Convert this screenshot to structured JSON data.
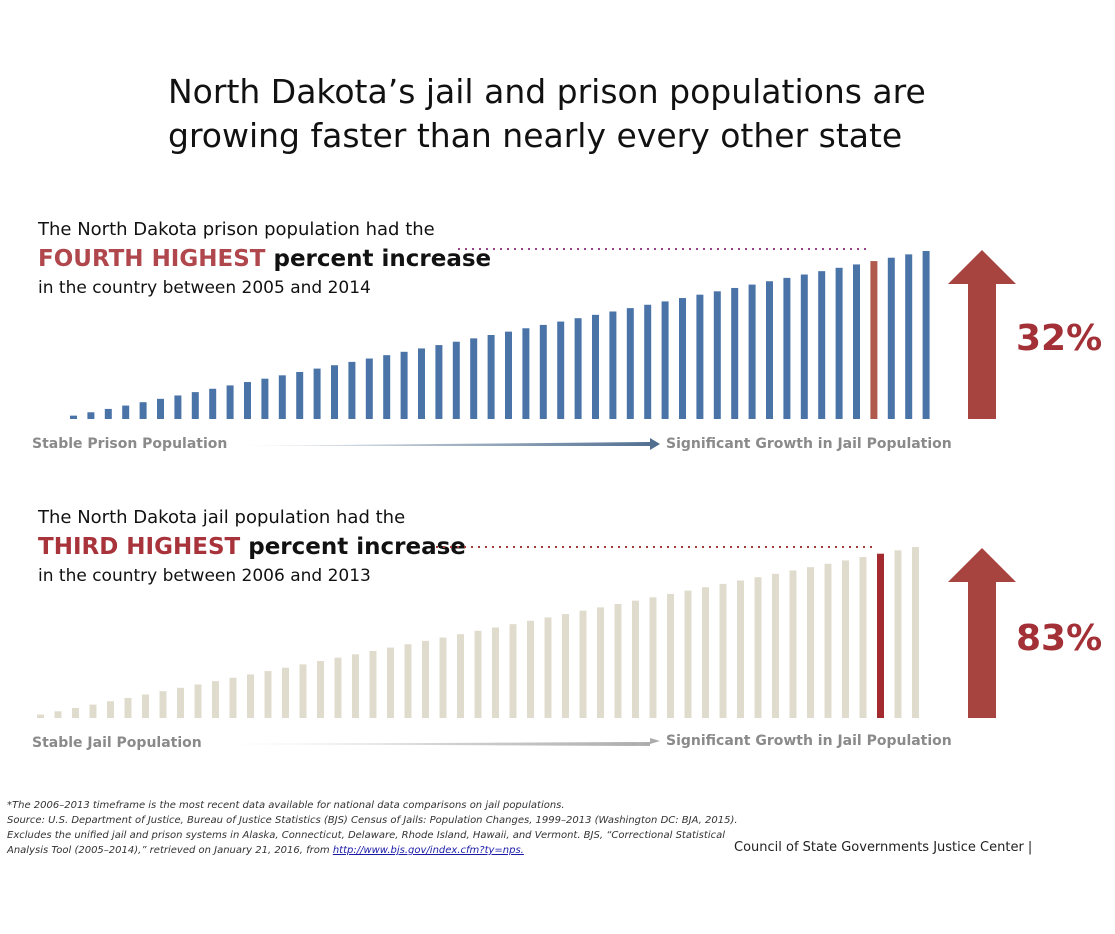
{
  "title": "North Dakota’s jail and prison populations are growing faster than nearly every other state",
  "panels": [
    {
      "intro_line1": "The North Dakota prison population had the",
      "highlight": "FOURTH HIGHEST",
      "highlight_rest": "percent increase",
      "intro_line3": "in the country between 2005 and 2014",
      "percent": "32%",
      "left_label": "Stable Prison Population",
      "right_label": "Significant Growth in Jail Population"
    },
    {
      "intro_line1": "The North Dakota jail population had the",
      "highlight": "THIRD HIGHEST",
      "highlight_rest": "percent increase",
      "intro_line3": "in the country between 2006 and 2013",
      "percent": "83%",
      "left_label": "Stable Jail Population",
      "right_label": "Significant Growth in Jail Population"
    }
  ],
  "footnote": "*The 2006–2013 timeframe is the most recent data available for national data comparisons on jail populations.",
  "source": "Source: U.S. Department of Justice, Bureau of Justice Statistics (BJS) Census of Jails: Population Changes, 1999–2013 (Washington DC: BJA, 2015). Excludes the unified jail and prison systems in Alaska, Connecticut, Delaware, Rhode Island, Hawaii, and Vermont. BJS, “Correctional Statistical Analysis Tool (2005–2014),” retrieved on January 21, 2016, from",
  "source_link": "http://www.bjs.gov/index.cfm?ty=nps.",
  "credit": "Council of State Governments Justice Center |",
  "colors": {
    "prison_bar": "#4a74a8",
    "jail_bar": "#e0dccd",
    "highlight_prison": "#b05a4e",
    "highlight_jail": "#a32a2f",
    "arrow": "#a8443f",
    "dots_prison": "#9a3f8a",
    "dots_jail": "#a33a3a"
  },
  "chart_data": [
    {
      "type": "bar",
      "bar_count": 50,
      "highlight_index": 46,
      "highlight_rank_label": "FOURTH HIGHEST",
      "values": [
        1,
        2,
        3,
        4,
        5,
        6,
        7,
        8,
        9,
        10,
        11,
        12,
        13,
        14,
        15,
        16,
        17,
        18,
        19,
        20,
        21,
        22,
        23,
        24,
        25,
        26,
        27,
        28,
        29,
        30,
        31,
        32,
        33,
        34,
        35,
        36,
        37,
        38,
        39,
        40,
        41,
        42,
        43,
        44,
        45,
        46,
        47,
        48,
        49,
        50
      ],
      "value_pct": "32%"
    },
    {
      "type": "bar",
      "bar_count": 51,
      "highlight_index": 48,
      "highlight_rank_label": "THIRD HIGHEST",
      "values": [
        1,
        2,
        3,
        4,
        5,
        6,
        7,
        8,
        9,
        10,
        11,
        12,
        13,
        14,
        15,
        16,
        17,
        18,
        19,
        20,
        21,
        22,
        23,
        24,
        25,
        26,
        27,
        28,
        29,
        30,
        31,
        32,
        33,
        34,
        35,
        36,
        37,
        38,
        39,
        40,
        41,
        42,
        43,
        44,
        45,
        46,
        47,
        48,
        49,
        50,
        51
      ],
      "value_pct": "83%"
    }
  ]
}
